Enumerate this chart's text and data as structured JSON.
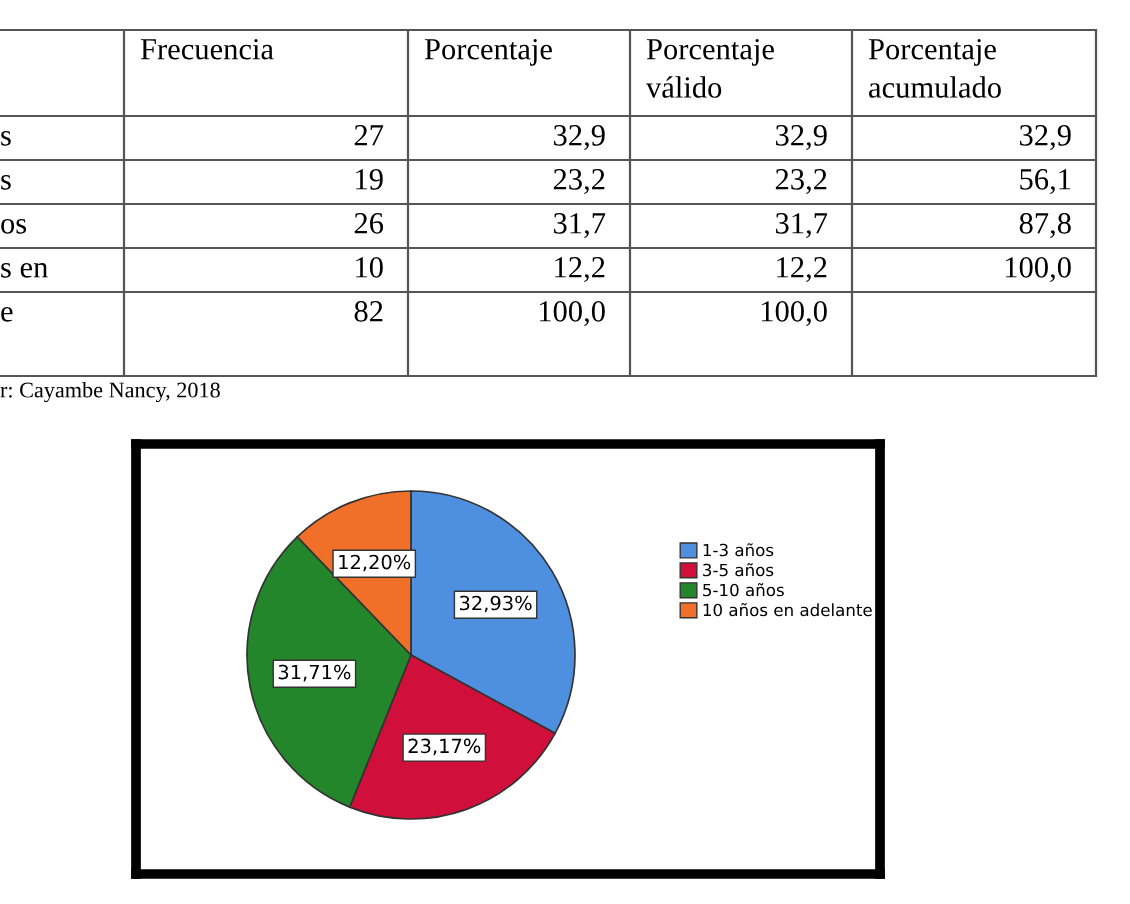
{
  "chart_data": [
    {
      "type": "other",
      "categories": [
        null,
        "Frecuencia",
        "Porcentaje",
        "Porcentaje\nválido",
        "Porcentaje\nacumulado"
      ],
      "y_categories": [
        "s",
        "s",
        "os",
        "s en",
        "e"
      ],
      "cell_labels": [
        [
          "27",
          "32,9",
          "32,9",
          "32,9"
        ],
        [
          "19",
          "23,2",
          "23,2",
          "56,1"
        ],
        [
          "26",
          "31,7",
          "31,7",
          "87,8"
        ],
        [
          "10",
          "12,2",
          "12,2",
          "100,0"
        ],
        [
          "82",
          "100,0",
          "100,0",
          null
        ]
      ],
      "annotations": [
        "r: Cayambe Nancy, 2018"
      ]
    },
    {
      "type": "pie",
      "categories": [
        "1-3 años",
        "3-5 años",
        "5-10 años",
        "10 años en adelante"
      ],
      "values": [
        32.93,
        23.17,
        31.71,
        12.2
      ],
      "value_labels": [
        "32,93%",
        "23,17%",
        "31,71%",
        "12,20%"
      ],
      "colors": [
        "#4f8fe0",
        "#d0103a",
        "#23862a",
        "#f0702a"
      ],
      "legend": "right"
    }
  ]
}
